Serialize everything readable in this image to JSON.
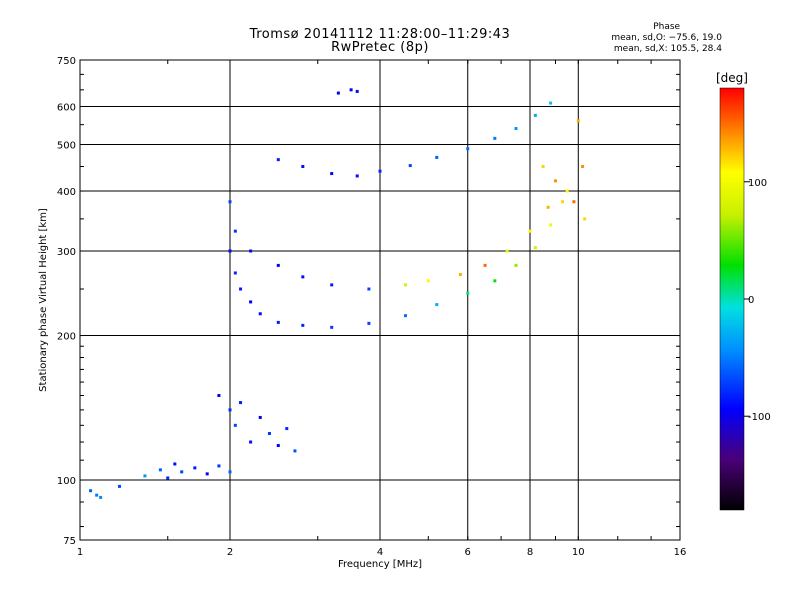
{
  "header": {
    "title": "Tromsø 20141112 11:28:00–11:29:43",
    "subtitle": "RwPretec (8p)",
    "phase_title": "Phase",
    "phase_o": "mean, sd,O: −75.6, 19.0",
    "phase_x": "mean, sd,X: 105.5, 28.4"
  },
  "chart_data": {
    "type": "scatter",
    "title": "Tromsø 20141112 11:28:00–11:29:43",
    "subtitle": "RwPretec (8p)",
    "xlabel": "Frequency [MHz]",
    "ylabel": "Stationary phase Virtual Height [km]",
    "xscale": "log",
    "yscale": "log",
    "xlim": [
      1,
      16
    ],
    "ylim": [
      75,
      750
    ],
    "xticks": [
      1,
      2,
      4,
      6,
      8,
      10,
      16
    ],
    "yticks": [
      75,
      100,
      200,
      300,
      400,
      500,
      600,
      750
    ],
    "grid_x": [
      2,
      4,
      6,
      8,
      10
    ],
    "grid_y": [
      100,
      200,
      300,
      400,
      500,
      600
    ],
    "colorbar": {
      "label": "[deg]",
      "ticks": [
        100,
        0,
        -100
      ],
      "range": [
        -180,
        180
      ]
    },
    "series": [
      {
        "points": [
          [
            1.05,
            95,
            -60
          ],
          [
            1.08,
            93,
            -50
          ],
          [
            1.1,
            92,
            -45
          ]
        ]
      },
      {
        "points": [
          [
            1.2,
            97,
            -70
          ],
          [
            1.35,
            102,
            -40
          ],
          [
            1.45,
            105,
            -60
          ],
          [
            1.5,
            101,
            -80
          ],
          [
            1.55,
            108,
            -90
          ],
          [
            1.6,
            104,
            -70
          ],
          [
            1.7,
            106,
            -85
          ],
          [
            1.8,
            103,
            -95
          ],
          [
            1.9,
            107,
            -75
          ],
          [
            2.0,
            104,
            -60
          ]
        ]
      },
      {
        "points": [
          [
            1.9,
            150,
            -95
          ],
          [
            2.0,
            140,
            -80
          ],
          [
            2.05,
            130,
            -70
          ],
          [
            2.1,
            145,
            -85
          ],
          [
            2.2,
            120,
            -90
          ],
          [
            2.3,
            135,
            -100
          ],
          [
            2.4,
            125,
            -75
          ],
          [
            2.5,
            118,
            -95
          ],
          [
            2.6,
            128,
            -80
          ],
          [
            2.7,
            115,
            -65
          ]
        ]
      },
      {
        "points": [
          [
            2.0,
            380,
            -70
          ],
          [
            2.05,
            330,
            -75
          ],
          [
            2.0,
            300,
            -90
          ],
          [
            2.05,
            270,
            -80
          ],
          [
            2.1,
            250,
            -85
          ],
          [
            2.2,
            235,
            -95
          ],
          [
            2.3,
            222,
            -90
          ],
          [
            2.5,
            213,
            -85
          ],
          [
            2.8,
            210,
            -80
          ],
          [
            3.2,
            208,
            -75
          ],
          [
            3.8,
            212,
            -70
          ],
          [
            4.5,
            220,
            -55
          ],
          [
            5.2,
            232,
            -30
          ],
          [
            6.0,
            245,
            10
          ],
          [
            6.8,
            260,
            30
          ],
          [
            7.5,
            280,
            60
          ],
          [
            8.2,
            305,
            80
          ],
          [
            8.8,
            340,
            100
          ],
          [
            9.3,
            380,
            120
          ]
        ]
      },
      {
        "points": [
          [
            2.2,
            300,
            -90
          ],
          [
            2.5,
            280,
            -95
          ],
          [
            2.8,
            265,
            -90
          ],
          [
            3.2,
            255,
            -85
          ],
          [
            3.8,
            250,
            -70
          ],
          [
            4.5,
            255,
            80
          ],
          [
            5.0,
            260,
            110
          ],
          [
            5.8,
            268,
            130
          ],
          [
            6.5,
            280,
            150
          ],
          [
            7.2,
            300,
            90
          ],
          [
            8.0,
            330,
            110
          ],
          [
            8.7,
            370,
            130
          ]
        ]
      },
      {
        "points": [
          [
            2.5,
            465,
            -85
          ],
          [
            2.8,
            450,
            -90
          ],
          [
            3.2,
            435,
            -95
          ],
          [
            3.6,
            430,
            -90
          ],
          [
            4.0,
            440,
            -80
          ],
          [
            4.6,
            452,
            -70
          ],
          [
            5.2,
            470,
            -60
          ],
          [
            6.0,
            490,
            -55
          ],
          [
            6.8,
            515,
            -50
          ],
          [
            7.5,
            540,
            -40
          ],
          [
            8.2,
            575,
            -30
          ],
          [
            8.8,
            610,
            -20
          ]
        ]
      },
      {
        "points": [
          [
            3.5,
            650,
            -100
          ],
          [
            3.3,
            640,
            -95
          ],
          [
            3.6,
            645,
            -90
          ]
        ]
      },
      {
        "points": [
          [
            8.5,
            450,
            120
          ],
          [
            9.0,
            420,
            140
          ],
          [
            9.5,
            400,
            110
          ],
          [
            9.8,
            380,
            150
          ],
          [
            10.0,
            560,
            130
          ],
          [
            10.2,
            450,
            140
          ],
          [
            10.3,
            350,
            120
          ]
        ]
      }
    ]
  }
}
